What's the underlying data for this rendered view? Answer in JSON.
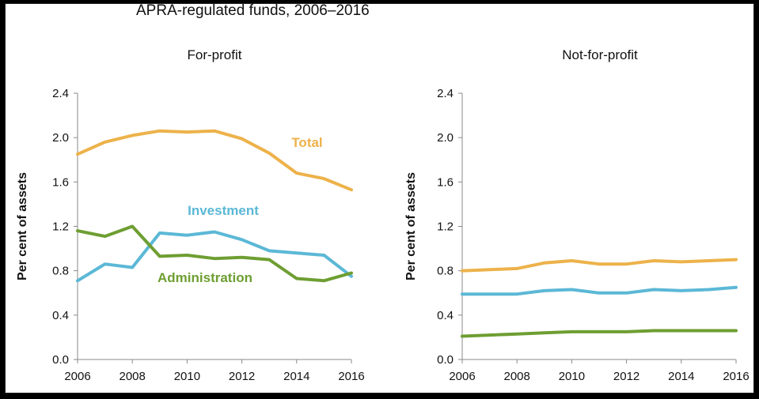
{
  "title": "APRA-regulated funds, 2006–2016",
  "colors": {
    "total": "#EDB24A",
    "investment": "#5BB8D6",
    "administration": "#6E9E32"
  },
  "chart_data": [
    {
      "type": "line",
      "title": "For-profit",
      "xlabel": "",
      "ylabel": "Per cent of assets",
      "x": [
        2006,
        2007,
        2008,
        2009,
        2010,
        2011,
        2012,
        2013,
        2014,
        2015,
        2016
      ],
      "xticks": [
        "2006",
        "2008",
        "2010",
        "2012",
        "2014",
        "2016"
      ],
      "yticks": [
        "0.0",
        "0.4",
        "0.8",
        "1.2",
        "1.6",
        "2.0",
        "2.4"
      ],
      "xlim": [
        2006,
        2016
      ],
      "ylim": [
        0,
        2.4
      ],
      "series": [
        {
          "name": "Total",
          "color": "#EDB24A",
          "values": [
            1.85,
            1.96,
            2.02,
            2.06,
            2.05,
            2.06,
            1.99,
            1.86,
            1.68,
            1.63,
            1.53
          ]
        },
        {
          "name": "Investment",
          "color": "#5BB8D6",
          "values": [
            0.71,
            0.86,
            0.83,
            1.14,
            1.12,
            1.15,
            1.08,
            0.98,
            0.96,
            0.94,
            0.75
          ]
        },
        {
          "name": "Administration",
          "color": "#6E9E32",
          "values": [
            1.16,
            1.11,
            1.2,
            0.93,
            0.94,
            0.91,
            0.92,
            0.9,
            0.73,
            0.71,
            0.78
          ]
        }
      ]
    },
    {
      "type": "line",
      "title": "Not-for-profit",
      "xlabel": "",
      "ylabel": "Per cent of assets",
      "x": [
        2006,
        2007,
        2008,
        2009,
        2010,
        2011,
        2012,
        2013,
        2014,
        2015,
        2016
      ],
      "xticks": [
        "2006",
        "2008",
        "2010",
        "2012",
        "2014",
        "2016"
      ],
      "yticks": [
        "0.0",
        "0.4",
        "0.8",
        "1.2",
        "1.6",
        "2.0",
        "2.4"
      ],
      "xlim": [
        2006,
        2016
      ],
      "ylim": [
        0,
        2.4
      ],
      "series": [
        {
          "color": "#EDB24A",
          "values": [
            0.8,
            0.81,
            0.82,
            0.87,
            0.89,
            0.86,
            0.86,
            0.89,
            0.88,
            0.89,
            0.9
          ]
        },
        {
          "color": "#5BB8D6",
          "values": [
            0.59,
            0.59,
            0.59,
            0.62,
            0.63,
            0.6,
            0.6,
            0.63,
            0.62,
            0.63,
            0.65
          ]
        },
        {
          "color": "#6E9E32",
          "values": [
            0.21,
            0.22,
            0.23,
            0.24,
            0.25,
            0.25,
            0.25,
            0.26,
            0.26,
            0.26,
            0.26
          ]
        }
      ]
    }
  ]
}
